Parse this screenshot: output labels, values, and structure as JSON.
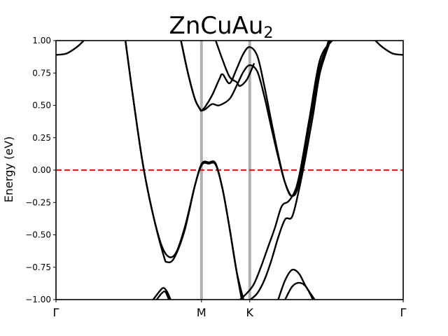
{
  "chart_data": {
    "type": "line",
    "title": "ZnCuAu",
    "title_subscript": "2",
    "xlabel": "",
    "ylabel": "Energy (eV)",
    "ylim": [
      -1.0,
      1.0
    ],
    "xlim": [
      0.0,
      1.0
    ],
    "grid": false,
    "y_ticks": [
      {
        "value": 1.0,
        "label": "1.00"
      },
      {
        "value": 0.75,
        "label": "0.75"
      },
      {
        "value": 0.5,
        "label": "0.50"
      },
      {
        "value": 0.25,
        "label": "0.25"
      },
      {
        "value": 0.0,
        "label": "0.00"
      },
      {
        "value": -0.25,
        "label": "−0.25"
      },
      {
        "value": -0.5,
        "label": "−0.50"
      },
      {
        "value": -0.75,
        "label": "−0.75"
      },
      {
        "value": -1.0,
        "label": "−1.00"
      }
    ],
    "kpoints": [
      {
        "label": "Γ",
        "x": 0.0
      },
      {
        "label": "M",
        "x": 0.419
      },
      {
        "label": "K",
        "x": 0.558
      },
      {
        "label": "Γ",
        "x": 1.0
      }
    ],
    "fermi_level": 0.0,
    "colors": {
      "bands": "#000000",
      "fermi_line": "#e41a1c",
      "kpoint_lines": "#b0b0b0"
    },
    "series": [
      {
        "x": [
          0.0,
          0.03,
          0.06,
          0.08
        ],
        "y": [
          0.89,
          0.9,
          0.95,
          1.0
        ]
      },
      {
        "x": [
          0.92,
          0.94,
          0.97,
          1.0
        ],
        "y": [
          1.0,
          0.95,
          0.9,
          0.89
        ]
      },
      {
        "x": [
          0.2,
          0.22,
          0.25,
          0.28,
          0.31,
          0.34,
          0.37,
          0.4,
          0.42,
          0.44,
          0.46,
          0.48,
          0.5,
          0.52,
          0.535
        ],
        "y": [
          1.0,
          0.6,
          0.05,
          -0.35,
          -0.62,
          -0.66,
          -0.45,
          -0.12,
          0.04,
          0.05,
          0.04,
          -0.15,
          -0.45,
          -0.78,
          -1.0
        ]
      },
      {
        "x": [
          0.2,
          0.22,
          0.25,
          0.28,
          0.31,
          0.32,
          0.34,
          0.37,
          0.4,
          0.42,
          0.44,
          0.46,
          0.48,
          0.5,
          0.52,
          0.54
        ],
        "y": [
          1.0,
          0.6,
          0.05,
          -0.35,
          -0.66,
          -0.71,
          -0.68,
          -0.47,
          -0.12,
          0.05,
          0.06,
          0.05,
          -0.15,
          -0.45,
          -0.78,
          -1.0
        ]
      },
      {
        "x": [
          0.36,
          0.38,
          0.4,
          0.415,
          0.419,
          0.43,
          0.45,
          0.47,
          0.5,
          0.52,
          0.54,
          0.558,
          0.58,
          0.6,
          0.62,
          0.64,
          0.66,
          0.68,
          0.7,
          0.73,
          0.76,
          0.79
        ],
        "y": [
          1.0,
          0.75,
          0.55,
          0.47,
          0.46,
          0.47,
          0.51,
          0.5,
          0.55,
          0.65,
          0.76,
          0.81,
          0.76,
          0.57,
          0.33,
          0.1,
          -0.1,
          -0.2,
          -0.1,
          0.35,
          0.8,
          1.0
        ]
      },
      {
        "x": [
          0.36,
          0.38,
          0.4,
          0.415,
          0.419,
          0.43,
          0.45,
          0.47,
          0.48,
          0.5,
          0.52,
          0.54,
          0.558,
          0.58,
          0.6,
          0.62,
          0.64,
          0.66,
          0.68,
          0.7,
          0.73,
          0.76,
          0.795
        ],
        "y": [
          1.0,
          0.75,
          0.55,
          0.47,
          0.46,
          0.49,
          0.58,
          0.7,
          0.74,
          0.67,
          0.78,
          0.9,
          0.95,
          0.88,
          0.65,
          0.38,
          0.12,
          -0.1,
          -0.2,
          -0.05,
          0.4,
          0.85,
          1.0
        ]
      },
      {
        "x": [
          0.46,
          0.48,
          0.5,
          0.52,
          0.53,
          0.55,
          0.57
        ],
        "y": [
          1.0,
          0.85,
          0.72,
          0.68,
          0.65,
          0.7,
          0.82
        ]
      },
      {
        "x": [
          0.53,
          0.55,
          0.57,
          0.59,
          0.61,
          0.63,
          0.65,
          0.67,
          0.69,
          0.71,
          0.73,
          0.76,
          0.79
        ],
        "y": [
          -1.0,
          -0.95,
          -0.88,
          -0.75,
          -0.6,
          -0.45,
          -0.28,
          -0.24,
          -0.15,
          0.05,
          0.35,
          0.75,
          1.0
        ]
      },
      {
        "x": [
          0.56,
          0.58,
          0.6,
          0.62,
          0.64,
          0.66,
          0.68,
          0.7,
          0.72,
          0.74,
          0.76,
          0.785
        ],
        "y": [
          -1.0,
          -0.95,
          -0.85,
          -0.7,
          -0.52,
          -0.38,
          -0.36,
          -0.15,
          0.12,
          0.42,
          0.75,
          1.0
        ]
      },
      {
        "x": [
          0.28,
          0.3,
          0.31,
          0.32,
          0.33
        ],
        "y": [
          -1.0,
          -0.93,
          -0.91,
          -0.94,
          -1.0
        ]
      },
      {
        "x": [
          0.29,
          0.305,
          0.315,
          0.325
        ],
        "y": [
          -1.0,
          -0.95,
          -0.94,
          -1.0
        ]
      },
      {
        "x": [
          0.64,
          0.66,
          0.68,
          0.7,
          0.72,
          0.745
        ],
        "y": [
          -1.0,
          -0.85,
          -0.77,
          -0.8,
          -0.9,
          -1.0
        ]
      },
      {
        "x": [
          0.66,
          0.68,
          0.7,
          0.72,
          0.74
        ],
        "y": [
          -1.0,
          -0.9,
          -0.87,
          -0.9,
          -1.0
        ]
      }
    ]
  }
}
